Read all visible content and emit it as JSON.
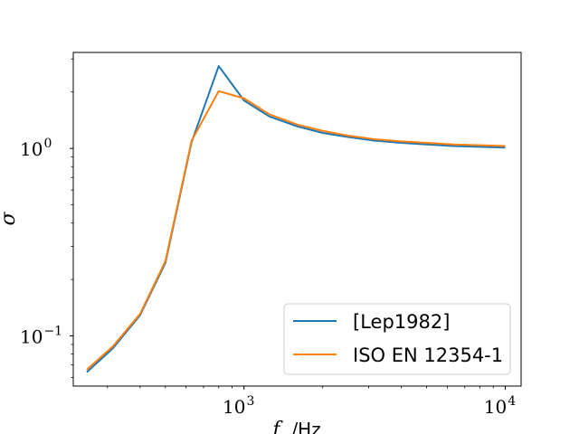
{
  "chart_data": {
    "type": "line",
    "title": "",
    "xlabel": "f",
    "xlabel_unit": "/Hz",
    "ylabel": "σ",
    "xscale": "log",
    "yscale": "log",
    "xlim": [
      222,
      11500
    ],
    "ylim": [
      0.054,
      3.25
    ],
    "grid": false,
    "legend_position": "lower-right",
    "x_ticks": [
      {
        "value": 1000,
        "base": "10",
        "exp": "3"
      },
      {
        "value": 10000,
        "base": "10",
        "exp": "4"
      }
    ],
    "y_ticks": [
      {
        "value": 0.1,
        "base": "10",
        "exp": "−1"
      },
      {
        "value": 1,
        "base": "10",
        "exp": "0"
      }
    ],
    "x": [
      250,
      315,
      400,
      500,
      630,
      800,
      1000,
      1250,
      1600,
      2000,
      2500,
      3150,
      4000,
      5000,
      6300,
      8000,
      10000
    ],
    "series": [
      {
        "name": "[Lep1982]",
        "color": "#1f77b4",
        "values": [
          0.064,
          0.086,
          0.129,
          0.245,
          1.08,
          2.75,
          1.8,
          1.48,
          1.31,
          1.21,
          1.15,
          1.1,
          1.07,
          1.05,
          1.03,
          1.02,
          1.01
        ]
      },
      {
        "name": "ISO EN 12354-1",
        "color": "#ff7f0e",
        "values": [
          0.066,
          0.088,
          0.131,
          0.25,
          1.1,
          2.02,
          1.85,
          1.52,
          1.34,
          1.24,
          1.17,
          1.12,
          1.09,
          1.07,
          1.05,
          1.04,
          1.03
        ]
      }
    ]
  }
}
